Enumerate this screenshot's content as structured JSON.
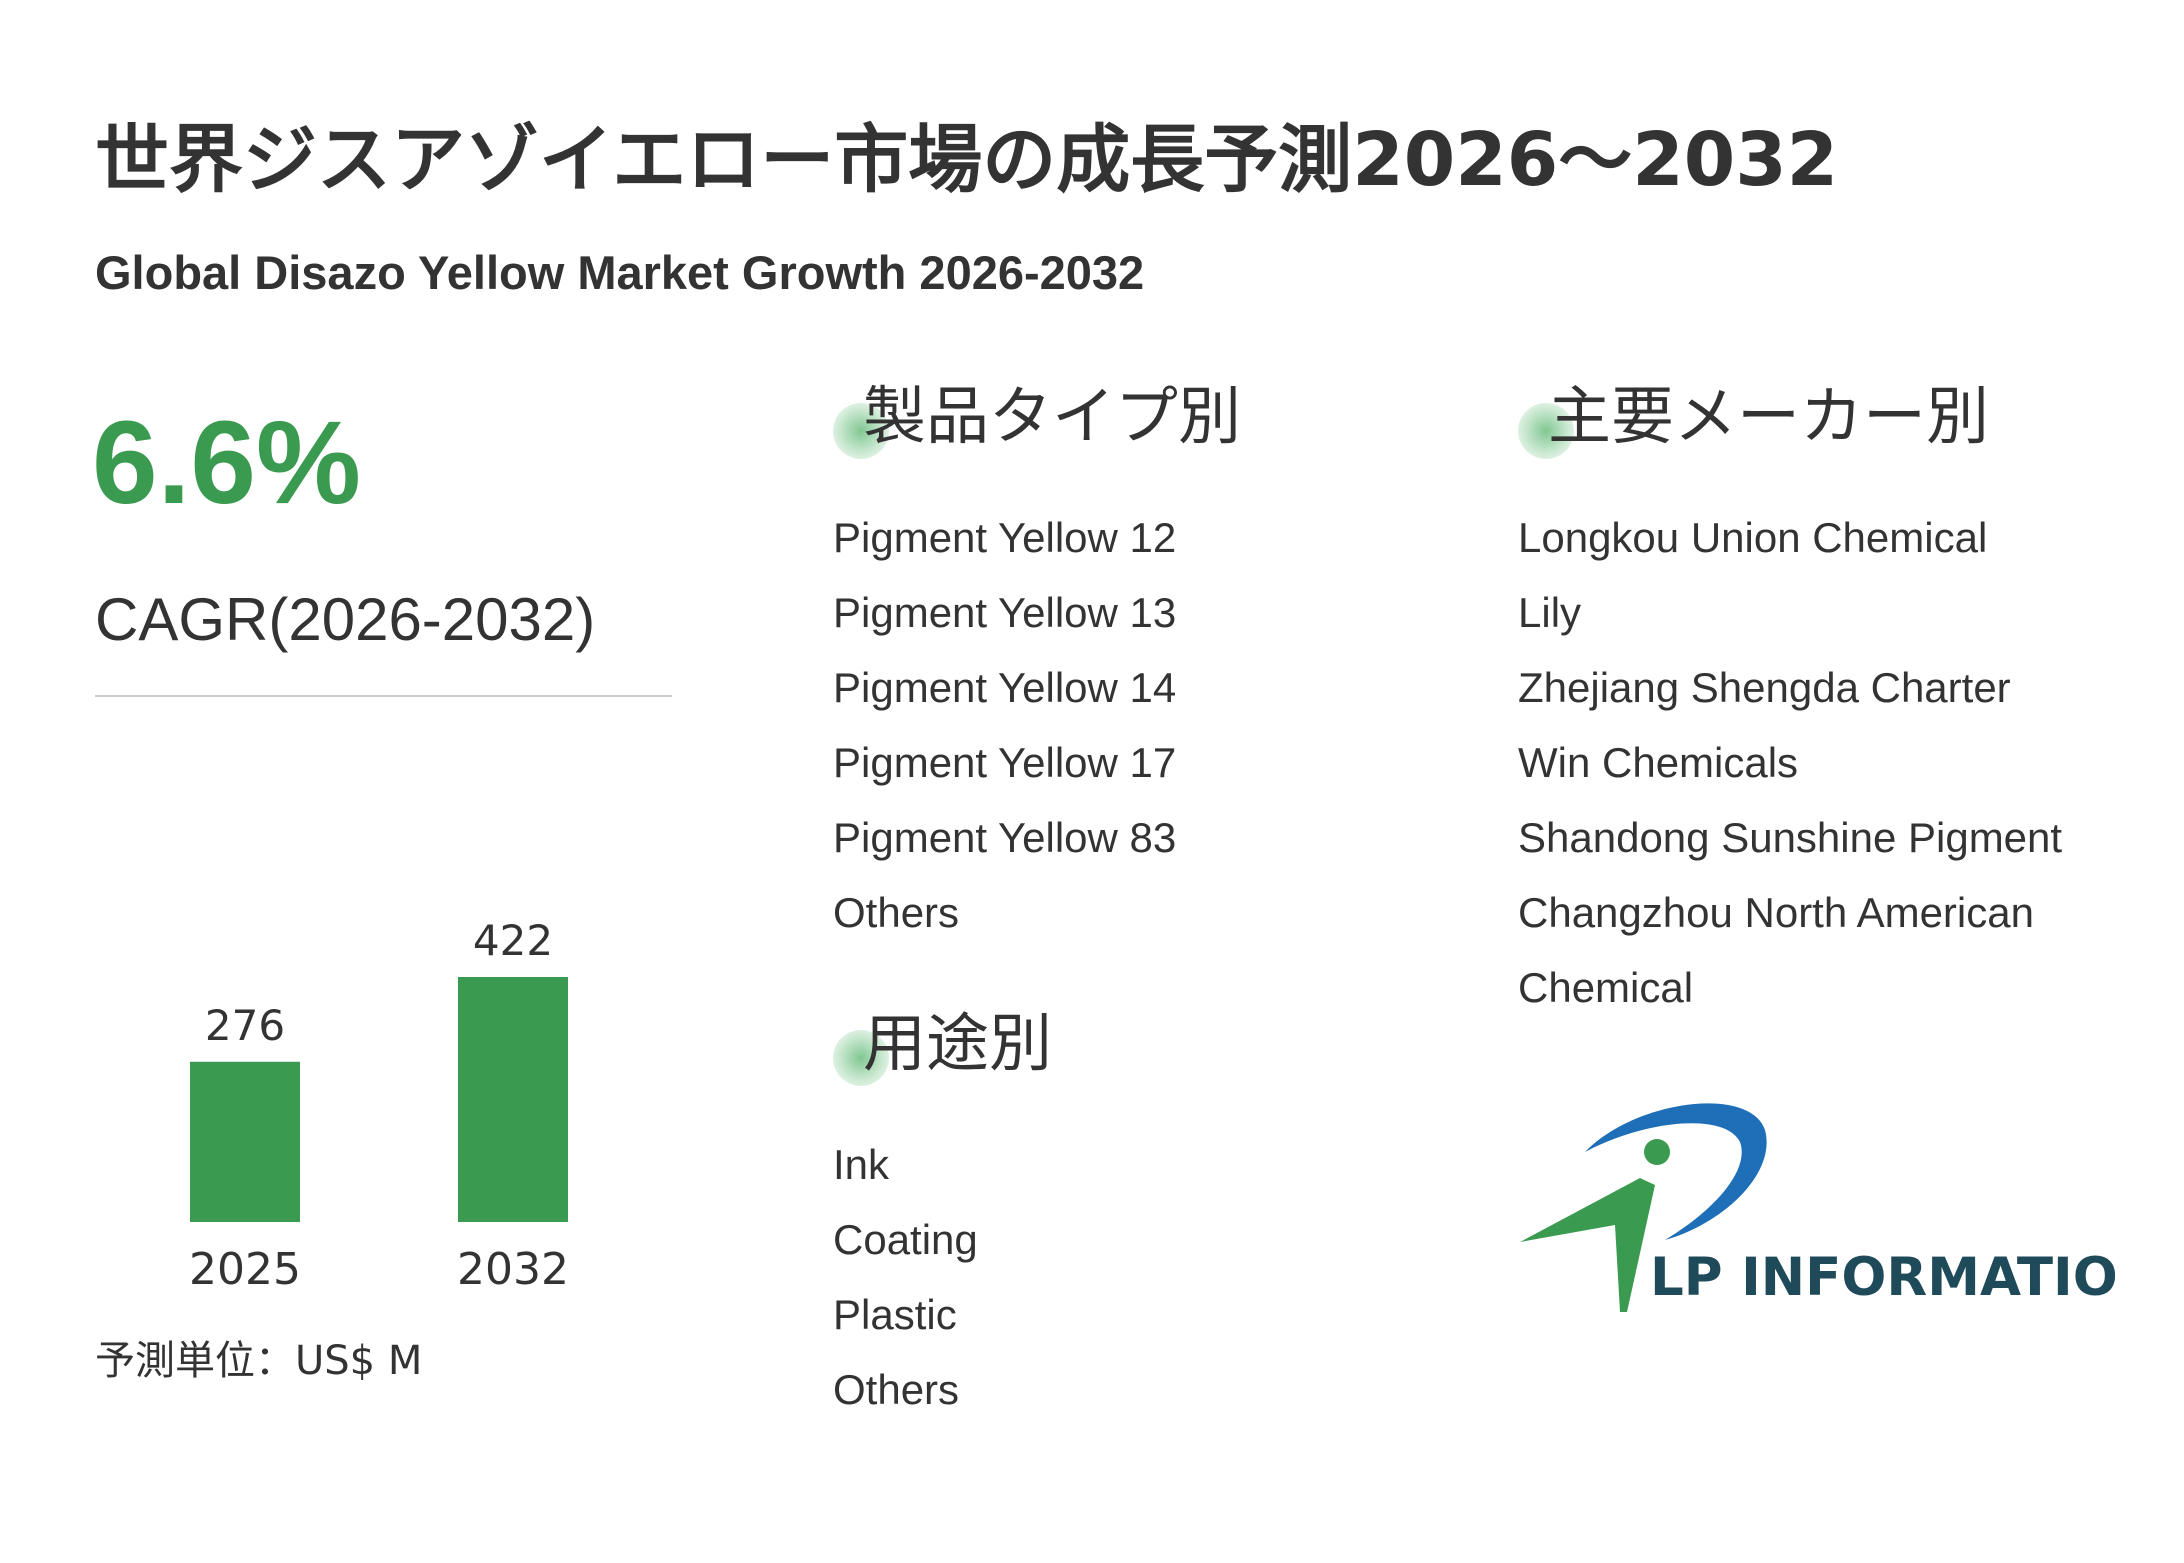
{
  "header": {
    "title": "世界ジスアゾイエロー市場の成長予測2026～2032",
    "subtitle": "Global Disazo Yellow Market Growth 2026-2032"
  },
  "summary": {
    "cagr_value": "6.6%",
    "cagr_label": "CAGR(2026-2032)",
    "unit_label": "予測単位：US$ M"
  },
  "colors": {
    "accent": "#3a9a50",
    "text": "#333333",
    "logo_blue": "#1f6fb8",
    "logo_dark": "#1f4a5a"
  },
  "chart_data": {
    "type": "bar",
    "categories": [
      "2025",
      "2032"
    ],
    "values": [
      276,
      422
    ],
    "value_labels": [
      "276",
      "422"
    ],
    "title": "",
    "xlabel": "",
    "ylabel": "",
    "ylim": [
      0,
      422
    ],
    "grid": false,
    "color": "#3a9a50"
  },
  "segments": {
    "product_type": {
      "heading": "製品タイプ別",
      "items": [
        "Pigment Yellow 12",
        "Pigment Yellow 13",
        "Pigment Yellow 14",
        "Pigment Yellow 17",
        "Pigment Yellow 83",
        "Others"
      ]
    },
    "application": {
      "heading": "用途別",
      "items": [
        "Ink",
        "Coating",
        "Plastic",
        "Others"
      ]
    },
    "manufacturers": {
      "heading": "主要メーカー別",
      "items": [
        "Longkou Union Chemical",
        "Lily",
        "Zhejiang Shengda Charter",
        "Win Chemicals",
        "Shandong Sunshine Pigment",
        "Changzhou North American",
        "Chemical"
      ]
    }
  },
  "logo": {
    "text": "LP INFORMATION",
    "icon": "lp-information-logo-icon"
  }
}
